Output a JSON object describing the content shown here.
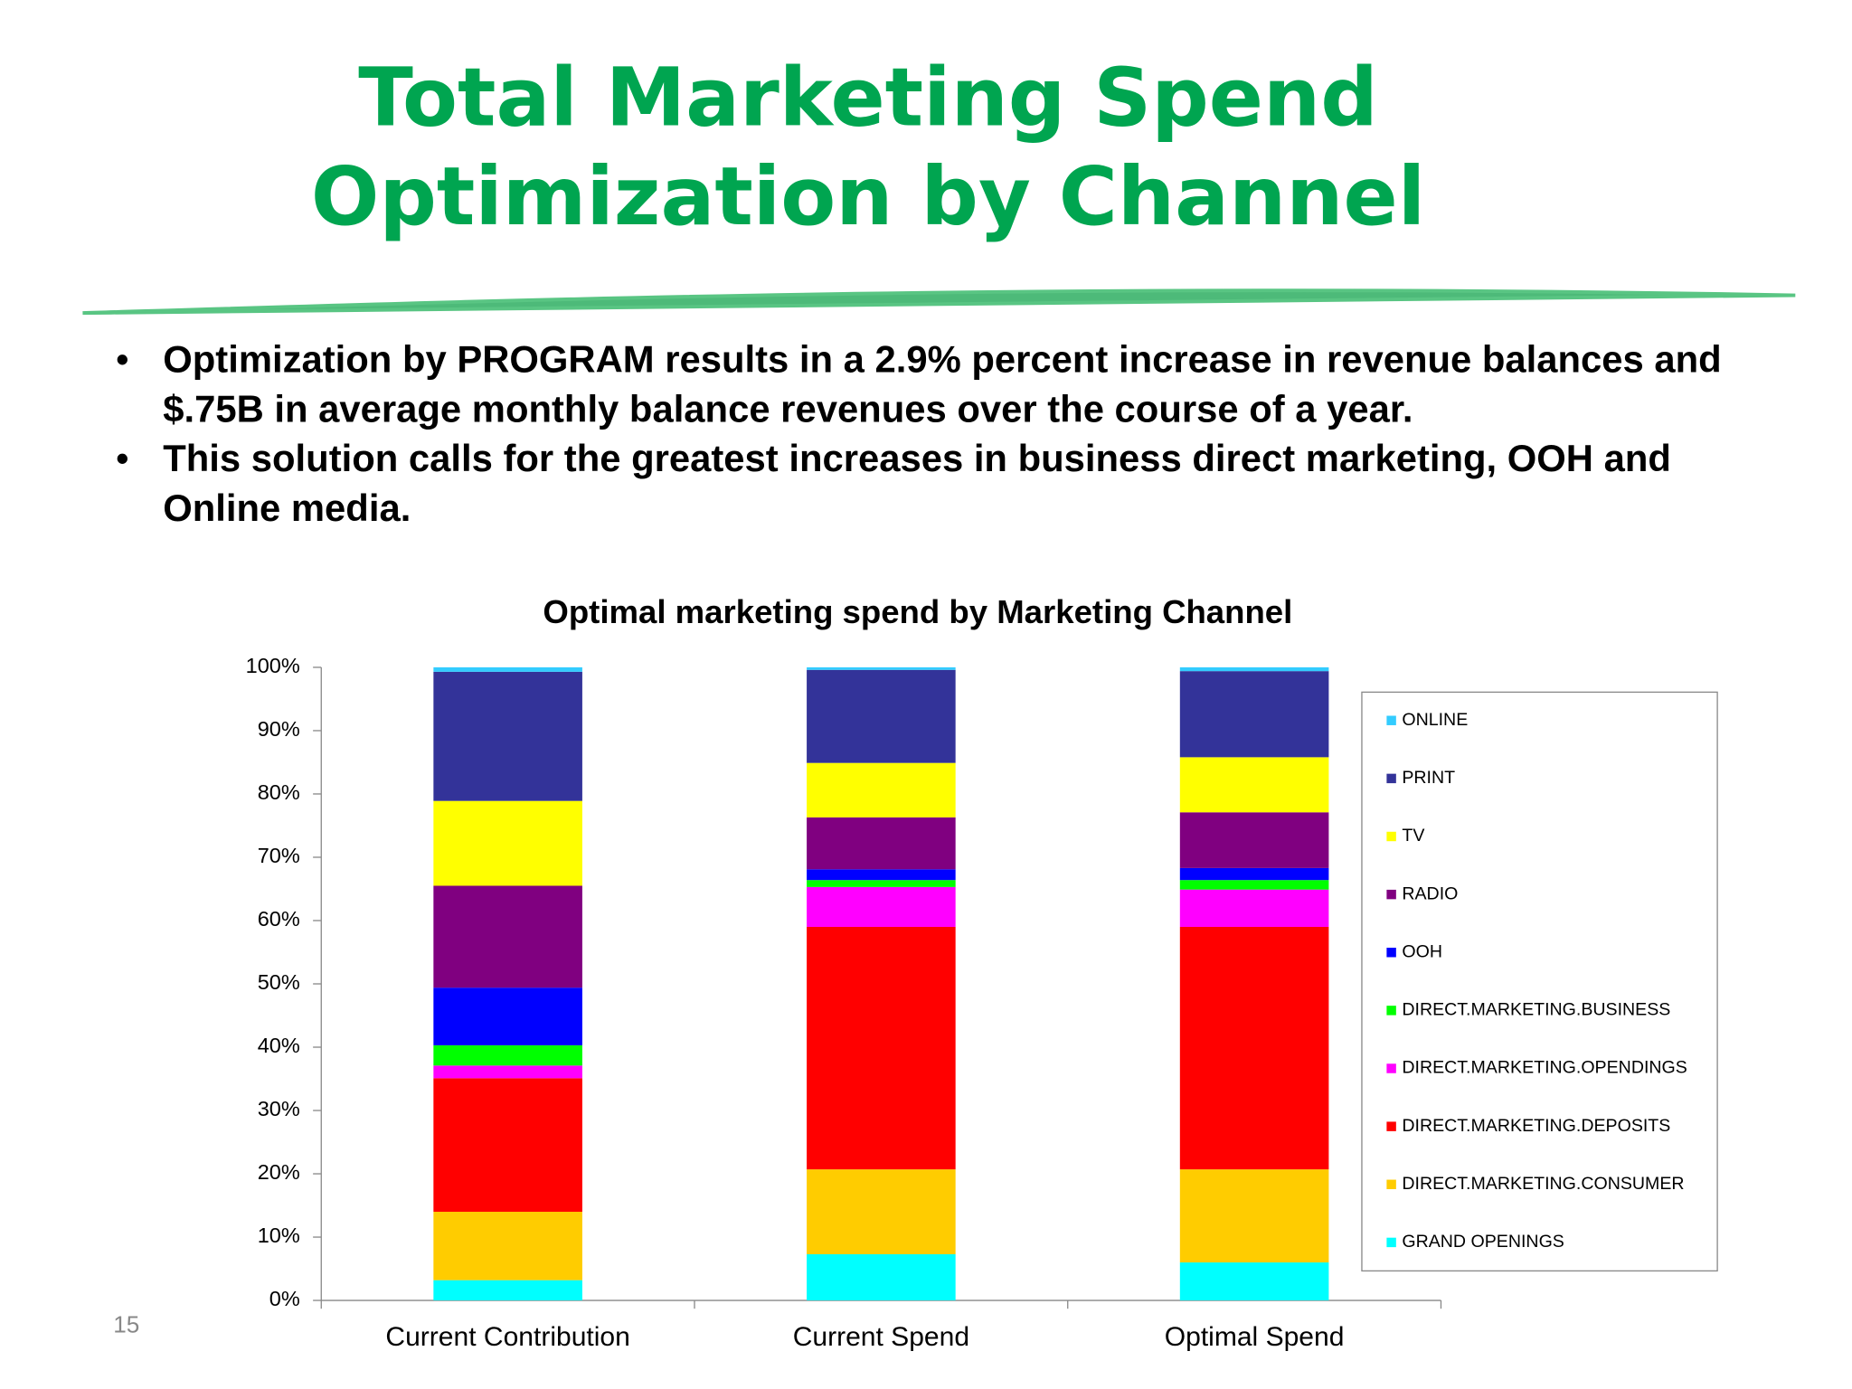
{
  "header": {
    "title_lines": [
      "Total Marketing Spend",
      "Optimization by Channel"
    ]
  },
  "bullets": [
    "Optimization by PROGRAM results in a 2.9% percent increase in revenue balances and $.75B in average monthly balance revenues over the course of a year.",
    "This solution calls for the greatest increases in business direct marketing, OOH and Online media."
  ],
  "page_number": "15",
  "chart_data": {
    "type": "bar",
    "stacked": true,
    "title": "Optimal marketing spend by Marketing Channel",
    "categories": [
      "Current Contribution",
      "Current Spend",
      "Optimal Spend"
    ],
    "series": [
      {
        "name": "GRAND OPENINGS",
        "color": "#00ffff",
        "values": [
          3.2,
          7.3,
          6.0
        ]
      },
      {
        "name": "DIRECT.MARKETING.CONSUMER",
        "color": "#ffcc00",
        "values": [
          10.8,
          13.4,
          14.7
        ]
      },
      {
        "name": "DIRECT.MARKETING.DEPOSITS",
        "color": "#ff0000",
        "values": [
          21.1,
          38.3,
          38.3
        ]
      },
      {
        "name": "DIRECT.MARKETING.OPENDINGS",
        "color": "#ff00ff",
        "values": [
          2.0,
          6.3,
          5.9
        ]
      },
      {
        "name": "DIRECT.MARKETING.BUSINESS",
        "color": "#00ff00",
        "values": [
          3.2,
          1.1,
          1.5
        ]
      },
      {
        "name": "OOH",
        "color": "#0000ff",
        "values": [
          9.1,
          1.7,
          1.9
        ]
      },
      {
        "name": "RADIO",
        "color": "#800080",
        "values": [
          16.1,
          8.2,
          8.8
        ]
      },
      {
        "name": "TV",
        "color": "#ffff00",
        "values": [
          13.4,
          8.6,
          8.7
        ]
      },
      {
        "name": "PRINT",
        "color": "#333399",
        "values": [
          20.4,
          14.7,
          13.6
        ]
      },
      {
        "name": "ONLINE",
        "color": "#33ccff",
        "values": [
          0.7,
          0.4,
          0.6
        ]
      }
    ],
    "ylim": [
      0,
      100
    ],
    "yticks": [
      {
        "value": 0,
        "label": "0%"
      },
      {
        "value": 10,
        "label": "10%"
      },
      {
        "value": 20,
        "label": "20%"
      },
      {
        "value": 30,
        "label": "30%"
      },
      {
        "value": 40,
        "label": "40%"
      },
      {
        "value": 50,
        "label": "50%"
      },
      {
        "value": 60,
        "label": "60%"
      },
      {
        "value": 70,
        "label": "70%"
      },
      {
        "value": 80,
        "label": "80%"
      },
      {
        "value": 90,
        "label": "90%"
      },
      {
        "value": 100,
        "label": "100%"
      }
    ],
    "legend": "right"
  }
}
